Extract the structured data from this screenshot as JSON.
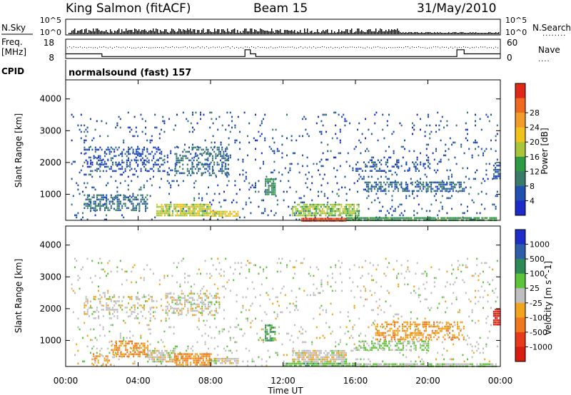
{
  "header": {
    "station": "King Salmon (fitACF)",
    "beam": "Beam 15",
    "date": "31/May/2010"
  },
  "chart_data": [
    {
      "type": "line",
      "name": "status-panel-noise",
      "left_label": "N.Sky",
      "right_label": "N.Search",
      "left_ticks": [
        "10^5",
        "10^0"
      ],
      "right_ticks": [
        "10^5",
        "10^0"
      ]
    },
    {
      "type": "line",
      "name": "status-panel-freq-nave",
      "left_label_lines": [
        "Freq.",
        "[MHz]"
      ],
      "right_label": "Nave",
      "left_ticks": [
        "18",
        "8"
      ],
      "right_ticks": [
        "60",
        "0"
      ],
      "freq_mhz": [
        {
          "t": 0.0,
          "v": 10.4
        },
        {
          "t": 2.0,
          "v": 10.4
        },
        {
          "t": 2.0,
          "v": 9.0
        },
        {
          "t": 9.9,
          "v": 9.0
        },
        {
          "t": 9.9,
          "v": 12.5
        },
        {
          "t": 10.2,
          "v": 12.5
        },
        {
          "t": 10.2,
          "v": 10.4
        },
        {
          "t": 10.5,
          "v": 10.4
        },
        {
          "t": 10.5,
          "v": 9.0
        },
        {
          "t": 21.6,
          "v": 9.0
        },
        {
          "t": 21.6,
          "v": 12.5
        },
        {
          "t": 22.0,
          "v": 12.5
        },
        {
          "t": 22.0,
          "v": 10.4
        },
        {
          "t": 24.0,
          "v": 10.4
        }
      ]
    },
    {
      "type": "heatmap",
      "name": "power-panel",
      "cpid_label": "CPID",
      "cpid_text": "normalsound (fast) 157",
      "ylabel": "Slant Range [km]",
      "yticks": [
        1000,
        2000,
        3000,
        4000
      ],
      "ylim": [
        180,
        4600
      ],
      "x_ticks": [
        "00:00",
        "04:00",
        "08:00",
        "12:00",
        "16:00",
        "20:00",
        "00:00"
      ],
      "xlim_hours": [
        0,
        24
      ],
      "colorbar": {
        "label": "Power [dB]",
        "ticks": [
          "4",
          "8",
          "12",
          "16",
          "20",
          "24",
          "28"
        ],
        "colors": [
          "#1c2cc8",
          "#2050b0",
          "#3a7a6a",
          "#2f9a44",
          "#a9c53a",
          "#f2c21c",
          "#f39b2b",
          "#ee6a20",
          "#e02818"
        ]
      },
      "echo_regions": [
        {
          "t0": 0.3,
          "t1": 23.8,
          "r0": 200,
          "r1": 3600,
          "density": 0.07,
          "level": 1
        },
        {
          "t0": 1.0,
          "t1": 5.5,
          "r0": 1700,
          "r1": 2500,
          "density": 0.3,
          "level": 1
        },
        {
          "t0": 6.0,
          "t1": 9.0,
          "r0": 1600,
          "r1": 2500,
          "density": 0.4,
          "level": 1.7
        },
        {
          "t0": 1.0,
          "t1": 4.5,
          "r0": 500,
          "r1": 1000,
          "density": 0.55,
          "level": 1.8
        },
        {
          "t0": 5.0,
          "t1": 8.0,
          "r0": 300,
          "r1": 700,
          "density": 0.8,
          "level": 4.2
        },
        {
          "t0": 8.0,
          "t1": 9.5,
          "r0": 300,
          "r1": 480,
          "density": 0.85,
          "level": 4.8
        },
        {
          "t0": 11.0,
          "t1": 11.6,
          "r0": 1000,
          "r1": 1500,
          "density": 0.8,
          "level": 2.6
        },
        {
          "t0": 12.5,
          "t1": 16.2,
          "r0": 300,
          "r1": 700,
          "density": 0.75,
          "level": 3.8
        },
        {
          "t0": 13.0,
          "t1": 15.5,
          "r0": 180,
          "r1": 260,
          "density": 1.0,
          "level": 7.6
        },
        {
          "t0": 15.5,
          "t1": 23.8,
          "r0": 180,
          "r1": 280,
          "density": 0.9,
          "level": 3.0
        },
        {
          "t0": 16.5,
          "t1": 22.0,
          "r0": 1100,
          "r1": 1400,
          "density": 0.55,
          "level": 1.5
        },
        {
          "t0": 16.0,
          "t1": 20.0,
          "r0": 1700,
          "r1": 2100,
          "density": 0.3,
          "level": 1
        },
        {
          "t0": 23.6,
          "t1": 24.0,
          "r0": 1500,
          "r1": 2000,
          "density": 0.7,
          "level": 1.2
        }
      ]
    },
    {
      "type": "heatmap",
      "name": "velocity-panel",
      "ylabel": "Slant Range [km]",
      "yticks": [
        1000,
        2000,
        3000,
        4000
      ],
      "ylim": [
        180,
        4600
      ],
      "xlabel": "Time UT",
      "x_ticks": [
        "00:00",
        "04:00",
        "08:00",
        "12:00",
        "16:00",
        "20:00",
        "00:00"
      ],
      "xlim_hours": [
        0,
        24
      ],
      "colorbar": {
        "label": "Velocity [m s^-1]",
        "ticks": [
          "1000",
          "500",
          "100",
          "25",
          "-25",
          "-100",
          "-500",
          "-1000"
        ],
        "colors": [
          "#1e2cc8",
          "#2e5ea8",
          "#2e8a55",
          "#5ec43a",
          "#bfbfbf",
          "#f3a41e",
          "#f0781e",
          "#e83a1a",
          "#d81c10"
        ]
      },
      "echo_regions": [
        {
          "t0": 0.3,
          "t1": 23.8,
          "r0": 200,
          "r1": 3600,
          "density": 0.07,
          "level": 4
        },
        {
          "t0": 1.0,
          "t1": 5.0,
          "r0": 1700,
          "r1": 2400,
          "density": 0.25,
          "level": 4
        },
        {
          "t0": 5.5,
          "t1": 8.5,
          "r0": 1800,
          "r1": 2500,
          "density": 0.45,
          "level": 4.1
        },
        {
          "t0": 2.5,
          "t1": 4.5,
          "r0": 500,
          "r1": 1000,
          "density": 0.6,
          "level": 5.6
        },
        {
          "t0": 1.5,
          "t1": 2.5,
          "r0": 250,
          "r1": 600,
          "density": 0.4,
          "level": 5.2
        },
        {
          "t0": 4.5,
          "t1": 6.0,
          "r0": 300,
          "r1": 700,
          "density": 0.7,
          "level": 4.0
        },
        {
          "t0": 6.0,
          "t1": 8.0,
          "r0": 250,
          "r1": 600,
          "density": 0.75,
          "level": 5.6
        },
        {
          "t0": 8.0,
          "t1": 9.5,
          "r0": 250,
          "r1": 450,
          "density": 0.7,
          "level": 4.2
        },
        {
          "t0": 11.0,
          "t1": 11.6,
          "r0": 1000,
          "r1": 1500,
          "density": 0.8,
          "level": 2.4
        },
        {
          "t0": 12.5,
          "t1": 15.5,
          "r0": 300,
          "r1": 700,
          "density": 0.75,
          "level": 4.1
        },
        {
          "t0": 12.0,
          "t1": 16.0,
          "r0": 180,
          "r1": 300,
          "density": 0.95,
          "level": 3.0
        },
        {
          "t0": 16.0,
          "t1": 23.8,
          "r0": 180,
          "r1": 280,
          "density": 0.85,
          "level": 3.6
        },
        {
          "t0": 16.0,
          "t1": 20.0,
          "r0": 700,
          "r1": 1000,
          "density": 0.5,
          "level": 3.3
        },
        {
          "t0": 17.0,
          "t1": 22.0,
          "r0": 1000,
          "r1": 1600,
          "density": 0.45,
          "level": 5.3
        },
        {
          "t0": 23.6,
          "t1": 24.0,
          "r0": 1500,
          "r1": 2000,
          "density": 0.8,
          "level": 7.8
        }
      ]
    }
  ]
}
